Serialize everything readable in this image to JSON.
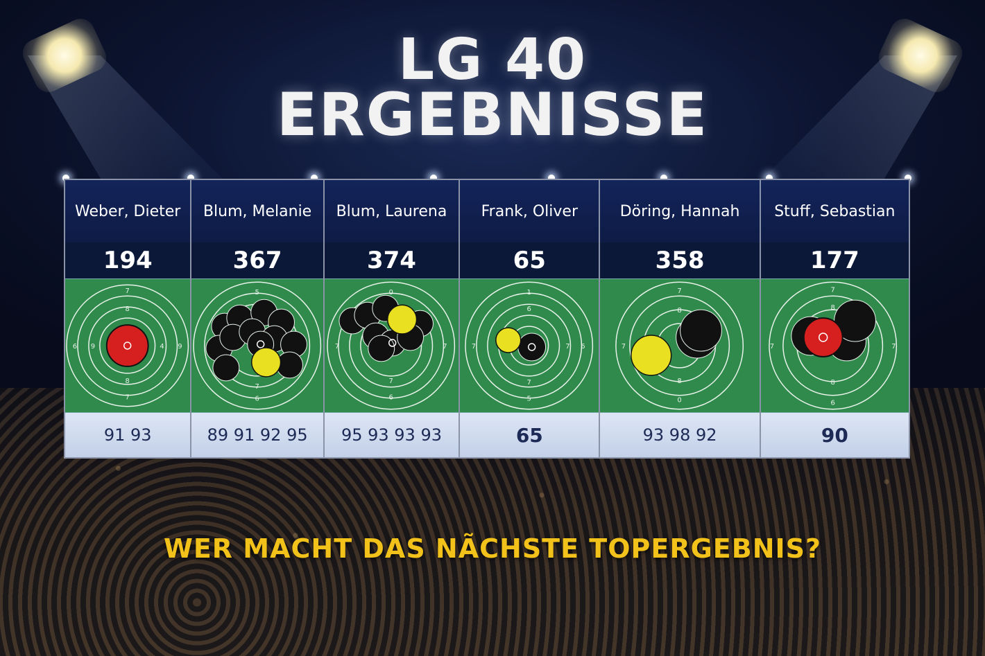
{
  "title": {
    "line1": "LG 40",
    "line2": "ERGEBNISSE"
  },
  "tagline": "WER MACHT DAS NÃCHSTE TOPERGEBNIS?",
  "colors": {
    "target_green": "#2f8a4b",
    "shot_black": "#111111",
    "shot_yellow": "#e8e020",
    "shot_red": "#d62020",
    "tagline": "#f2c21a"
  },
  "shooters": [
    {
      "name": "Weber, Dieter",
      "total": "194",
      "series": "91 93"
    },
    {
      "name": "Blum, Melanie",
      "total": "367",
      "series": "89 91 92 95"
    },
    {
      "name": "Blum, Laurena",
      "total": "374",
      "series": "95 93 93 93"
    },
    {
      "name": "Frank, Oliver",
      "total": "65",
      "series": "65"
    },
    {
      "name": "Döring, Hannah",
      "total": "358",
      "series": "93 98 92"
    },
    {
      "name": "Stuff, Sebastian",
      "total": "177",
      "series": "90"
    }
  ]
}
